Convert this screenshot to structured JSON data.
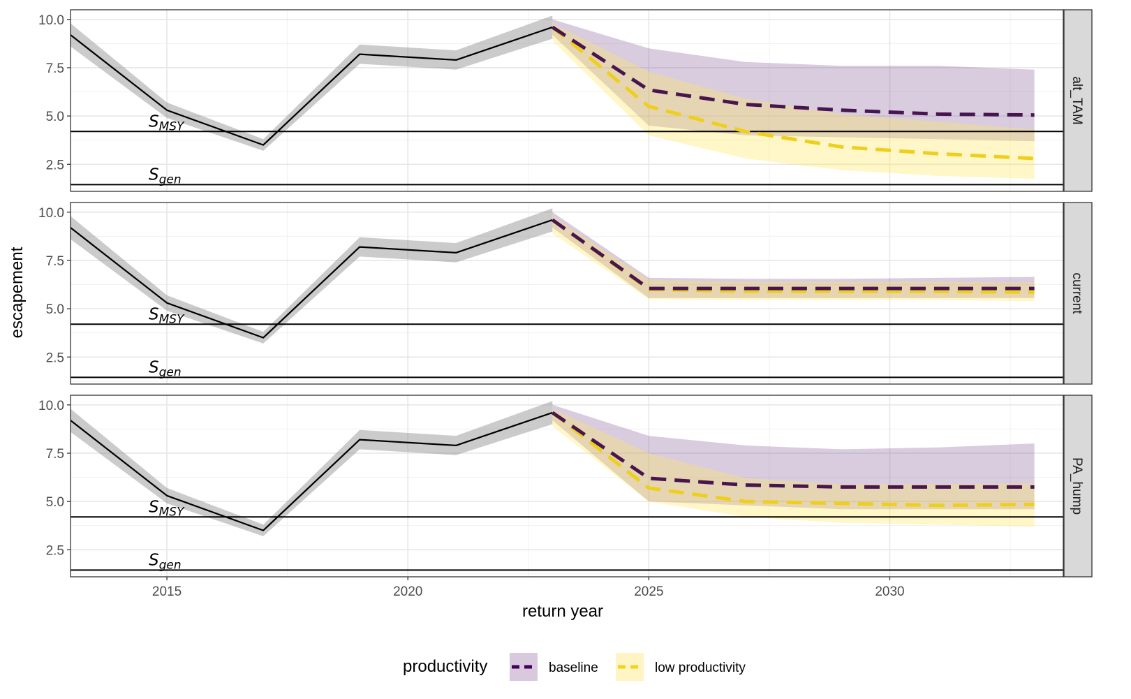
{
  "chart_data": {
    "type": "line",
    "xlabel": "return year",
    "ylabel": "escapement",
    "xlim": [
      2013,
      2033.6
    ],
    "ylim": [
      1.1,
      10.5
    ],
    "x_ticks": [
      2015,
      2020,
      2025,
      2030
    ],
    "x_tick_labels": [
      "2015",
      "2020",
      "2025",
      "2030"
    ],
    "y_ticks": [
      2.5,
      5.0,
      7.5,
      10.0
    ],
    "y_tick_labels": [
      "2.5",
      "5.0",
      "7.5",
      "10.0"
    ],
    "grid": true,
    "legend": {
      "title": "productivity",
      "position": "bottom",
      "entries": [
        {
          "label": "baseline",
          "color": "#440154",
          "fill": "#d9c9df"
        },
        {
          "label": "low productivity",
          "color": "#f2d31f",
          "fill": "#fff5c4"
        }
      ]
    },
    "reference_lines": [
      {
        "name": "S_MSY",
        "label_main": "S",
        "label_sub": "MSY",
        "value": 4.2
      },
      {
        "name": "S_gen",
        "label_main": "S",
        "label_sub": "gen",
        "value": 1.45
      }
    ],
    "historical": {
      "x": [
        2013,
        2015,
        2017,
        2019,
        2021,
        2023
      ],
      "values": [
        9.2,
        5.3,
        3.5,
        8.2,
        7.9,
        9.6
      ],
      "lower": [
        8.6,
        4.9,
        3.2,
        7.7,
        7.4,
        9.0
      ],
      "upper": [
        9.8,
        5.7,
        3.8,
        8.7,
        8.4,
        10.2
      ]
    },
    "panels": [
      {
        "strip": "alt_TAM",
        "series": [
          {
            "name": "baseline",
            "x": [
              2023,
              2025,
              2027,
              2029,
              2031,
              2033
            ],
            "values": [
              9.6,
              6.35,
              5.6,
              5.3,
              5.1,
              5.05
            ],
            "lower": [
              9.2,
              4.5,
              4.0,
              3.9,
              3.8,
              3.7
            ],
            "upper": [
              10.0,
              8.5,
              7.8,
              7.6,
              7.6,
              7.4
            ]
          },
          {
            "name": "low productivity",
            "x": [
              2023,
              2025,
              2027,
              2029,
              2031,
              2033
            ],
            "values": [
              9.6,
              5.5,
              4.2,
              3.4,
              3.05,
              2.8
            ],
            "lower": [
              8.9,
              4.0,
              2.8,
              2.2,
              1.9,
              1.75
            ],
            "upper": [
              9.8,
              7.3,
              5.9,
              5.1,
              4.7,
              4.3
            ]
          }
        ]
      },
      {
        "strip": "current",
        "series": [
          {
            "name": "baseline",
            "x": [
              2023,
              2025,
              2027,
              2029,
              2031,
              2033
            ],
            "values": [
              9.6,
              6.05,
              6.05,
              6.05,
              6.05,
              6.05
            ],
            "lower": [
              9.2,
              5.55,
              5.55,
              5.55,
              5.55,
              5.55
            ],
            "upper": [
              10.0,
              6.6,
              6.55,
              6.55,
              6.6,
              6.65
            ]
          },
          {
            "name": "low productivity",
            "x": [
              2023,
              2025,
              2027,
              2029,
              2031,
              2033
            ],
            "values": [
              9.6,
              6.0,
              5.9,
              5.9,
              5.9,
              5.85
            ],
            "lower": [
              8.9,
              5.5,
              5.45,
              5.45,
              5.45,
              5.4
            ],
            "upper": [
              9.8,
              6.5,
              6.4,
              6.4,
              6.4,
              6.35
            ]
          }
        ]
      },
      {
        "strip": "PA_hump",
        "series": [
          {
            "name": "baseline",
            "x": [
              2023,
              2025,
              2027,
              2029,
              2031,
              2033
            ],
            "values": [
              9.6,
              6.2,
              5.85,
              5.75,
              5.75,
              5.75
            ],
            "lower": [
              9.2,
              5.0,
              4.8,
              4.6,
              4.6,
              4.6
            ],
            "upper": [
              10.0,
              8.4,
              7.9,
              7.7,
              7.8,
              8.0
            ]
          },
          {
            "name": "low productivity",
            "x": [
              2023,
              2025,
              2027,
              2029,
              2031,
              2033
            ],
            "values": [
              9.6,
              5.7,
              5.0,
              4.9,
              4.8,
              4.85
            ],
            "lower": [
              8.9,
              5.0,
              4.2,
              3.9,
              3.8,
              3.7
            ],
            "upper": [
              9.8,
              7.5,
              6.2,
              5.9,
              5.9,
              5.95
            ]
          }
        ]
      }
    ]
  }
}
